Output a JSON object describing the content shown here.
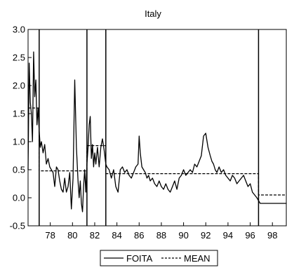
{
  "chart_data": {
    "type": "line",
    "title": "Italy",
    "xlabel": "",
    "ylabel": "",
    "xlim": [
      1976,
      1999.25
    ],
    "ylim": [
      -0.5,
      3.0
    ],
    "x_ticks": [
      {
        "value": 1978,
        "label": "78"
      },
      {
        "value": 1980,
        "label": "80"
      },
      {
        "value": 1982,
        "label": "82"
      },
      {
        "value": 1984,
        "label": "84"
      },
      {
        "value": 1986,
        "label": "86"
      },
      {
        "value": 1988,
        "label": "88"
      },
      {
        "value": 1990,
        "label": "90"
      },
      {
        "value": 1992,
        "label": "92"
      },
      {
        "value": 1994,
        "label": "94"
      },
      {
        "value": 1996,
        "label": "96"
      },
      {
        "value": 1998,
        "label": "98"
      }
    ],
    "y_ticks": [
      {
        "value": 3.0,
        "label": "3.0"
      },
      {
        "value": 2.5,
        "label": "2.5"
      },
      {
        "value": 2.0,
        "label": "2.0"
      },
      {
        "value": 1.5,
        "label": "1.5"
      },
      {
        "value": 1.0,
        "label": "1.0"
      },
      {
        "value": 0.5,
        "label": "0.5"
      },
      {
        "value": 0.0,
        "label": "0.0"
      },
      {
        "value": -0.5,
        "label": "-0.5"
      }
    ],
    "grid": false,
    "legend": {
      "position": "bottom"
    },
    "breaks": [
      1977.0,
      1981.3,
      1983.0,
      1996.75
    ],
    "series": [
      {
        "name": "FOITA",
        "style": "solid",
        "x": [
          1976.0,
          1976.1,
          1976.2,
          1976.3,
          1976.4,
          1976.5,
          1976.6,
          1976.7,
          1976.8,
          1976.9,
          1977.0,
          1977.1,
          1977.2,
          1977.35,
          1977.5,
          1977.65,
          1977.8,
          1977.95,
          1978.1,
          1978.25,
          1978.4,
          1978.55,
          1978.7,
          1978.85,
          1979.0,
          1979.15,
          1979.3,
          1979.45,
          1979.6,
          1979.75,
          1979.9,
          1980.05,
          1980.2,
          1980.35,
          1980.5,
          1980.6,
          1980.7,
          1980.8,
          1980.9,
          1981.0,
          1981.1,
          1981.2,
          1981.3,
          1981.4,
          1981.5,
          1981.6,
          1981.7,
          1981.8,
          1981.9,
          1982.0,
          1982.1,
          1982.25,
          1982.4,
          1982.55,
          1982.7,
          1982.85,
          1983.0,
          1983.1,
          1983.3,
          1983.5,
          1983.7,
          1983.9,
          1984.1,
          1984.3,
          1984.5,
          1984.7,
          1984.9,
          1985.1,
          1985.3,
          1985.5,
          1985.7,
          1985.9,
          1986.0,
          1986.1,
          1986.25,
          1986.4,
          1986.55,
          1986.7,
          1986.85,
          1987.0,
          1987.2,
          1987.4,
          1987.6,
          1987.8,
          1988.0,
          1988.2,
          1988.4,
          1988.6,
          1988.8,
          1989.0,
          1989.2,
          1989.4,
          1989.6,
          1989.8,
          1990.0,
          1990.2,
          1990.4,
          1990.6,
          1990.8,
          1991.0,
          1991.2,
          1991.4,
          1991.6,
          1991.8,
          1992.0,
          1992.2,
          1992.4,
          1992.55,
          1992.7,
          1992.85,
          1993.0,
          1993.2,
          1993.4,
          1993.6,
          1993.8,
          1994.0,
          1994.2,
          1994.4,
          1994.6,
          1994.8,
          1995.0,
          1995.2,
          1995.4,
          1995.6,
          1995.8,
          1996.0,
          1996.2,
          1996.4,
          1996.6,
          1996.75,
          1996.9,
          1997.1,
          1997.3,
          1997.5,
          1997.7,
          1997.9,
          1998.1,
          1998.3,
          1998.5,
          1998.7,
          1998.9,
          1999.1,
          1999.25
        ],
        "y": [
          0.5,
          2.4,
          1.7,
          1.5,
          1.0,
          2.6,
          1.8,
          2.1,
          1.3,
          1.6,
          1.2,
          0.9,
          1.0,
          0.8,
          0.95,
          0.6,
          0.7,
          0.55,
          0.5,
          0.45,
          0.2,
          0.55,
          0.5,
          0.3,
          0.15,
          0.1,
          0.35,
          0.1,
          0.2,
          0.45,
          -0.2,
          0.35,
          2.1,
          0.9,
          0.3,
          0.0,
          0.3,
          -0.1,
          -0.25,
          0.2,
          0.5,
          0.1,
          0.6,
          0.9,
          1.3,
          1.45,
          0.7,
          0.95,
          0.55,
          0.8,
          0.6,
          0.9,
          0.55,
          0.9,
          1.05,
          0.85,
          0.6,
          0.55,
          0.5,
          0.35,
          0.5,
          0.2,
          0.1,
          0.5,
          0.55,
          0.45,
          0.5,
          0.4,
          0.35,
          0.45,
          0.55,
          0.6,
          1.1,
          0.8,
          0.55,
          0.5,
          0.45,
          0.35,
          0.4,
          0.3,
          0.35,
          0.25,
          0.2,
          0.3,
          0.2,
          0.15,
          0.25,
          0.15,
          0.1,
          0.2,
          0.3,
          0.15,
          0.35,
          0.4,
          0.5,
          0.4,
          0.45,
          0.5,
          0.45,
          0.6,
          0.55,
          0.65,
          0.75,
          1.1,
          1.15,
          0.9,
          0.75,
          0.65,
          0.6,
          0.5,
          0.45,
          0.55,
          0.45,
          0.5,
          0.4,
          0.35,
          0.3,
          0.4,
          0.35,
          0.25,
          0.3,
          0.35,
          0.4,
          0.3,
          0.2,
          0.25,
          0.1,
          0.05,
          0.0,
          -0.05,
          -0.1,
          -0.1,
          -0.1,
          -0.1,
          -0.1,
          -0.1,
          -0.1,
          -0.1,
          -0.1,
          -0.1,
          -0.1,
          -0.1,
          -0.1
        ]
      },
      {
        "name": "MEAN",
        "style": "dashed",
        "x": [
          1976.0,
          1977.0,
          1977.0,
          1981.3,
          1981.3,
          1983.0,
          1983.0,
          1996.75,
          1996.75,
          1999.25
        ],
        "y": [
          1.6,
          1.6,
          0.48,
          0.48,
          0.93,
          0.93,
          0.43,
          0.43,
          0.05,
          0.05
        ]
      }
    ]
  }
}
